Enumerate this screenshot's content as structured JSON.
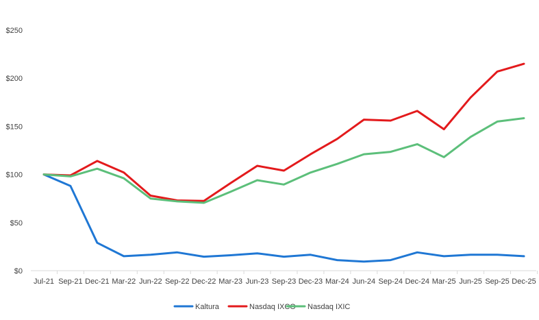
{
  "chart_data": {
    "type": "line",
    "title": "",
    "xlabel": "",
    "ylabel": "",
    "ylim": [
      0,
      250
    ],
    "yticks": [
      "$0",
      "$50",
      "$100",
      "$150",
      "$200",
      "$250"
    ],
    "ytick_values": [
      0,
      50,
      100,
      150,
      200,
      250
    ],
    "grid": false,
    "legend_position": "bottom-center",
    "categories": [
      "Jul-21",
      "Sep-21",
      "Dec-21",
      "Mar-22",
      "Jun-22",
      "Sep-22",
      "Dec-22",
      "Mar-23",
      "Jun-23",
      "Sep-23",
      "Dec-23",
      "Mar-24",
      "Jun-24",
      "Sep-24",
      "Dec-24",
      "Mar-25",
      "Jun-25",
      "Sep-25",
      "Dec-25"
    ],
    "series": [
      {
        "name": "Kaltura",
        "color": "#1f77d4",
        "values": [
          100,
          88,
          29,
          15,
          16.5,
          19,
          14.5,
          16,
          18,
          14.5,
          16.5,
          11,
          9.5,
          11,
          19,
          15,
          16.5,
          16.5,
          15
        ]
      },
      {
        "name": "Nasdaq IXCO",
        "color": "#e31a1c",
        "values": [
          100,
          99,
          114,
          102,
          78,
          73,
          72.5,
          91,
          109,
          104,
          121,
          137,
          157,
          156,
          166,
          147,
          180,
          207,
          215
        ]
      },
      {
        "name": "Nasdaq IXIC",
        "color": "#5cbf7a",
        "values": [
          100,
          98,
          106,
          96,
          75,
          72,
          70.5,
          82,
          94,
          89.5,
          102,
          111,
          121,
          123.5,
          131.5,
          118,
          139,
          155,
          158.5
        ]
      }
    ]
  }
}
